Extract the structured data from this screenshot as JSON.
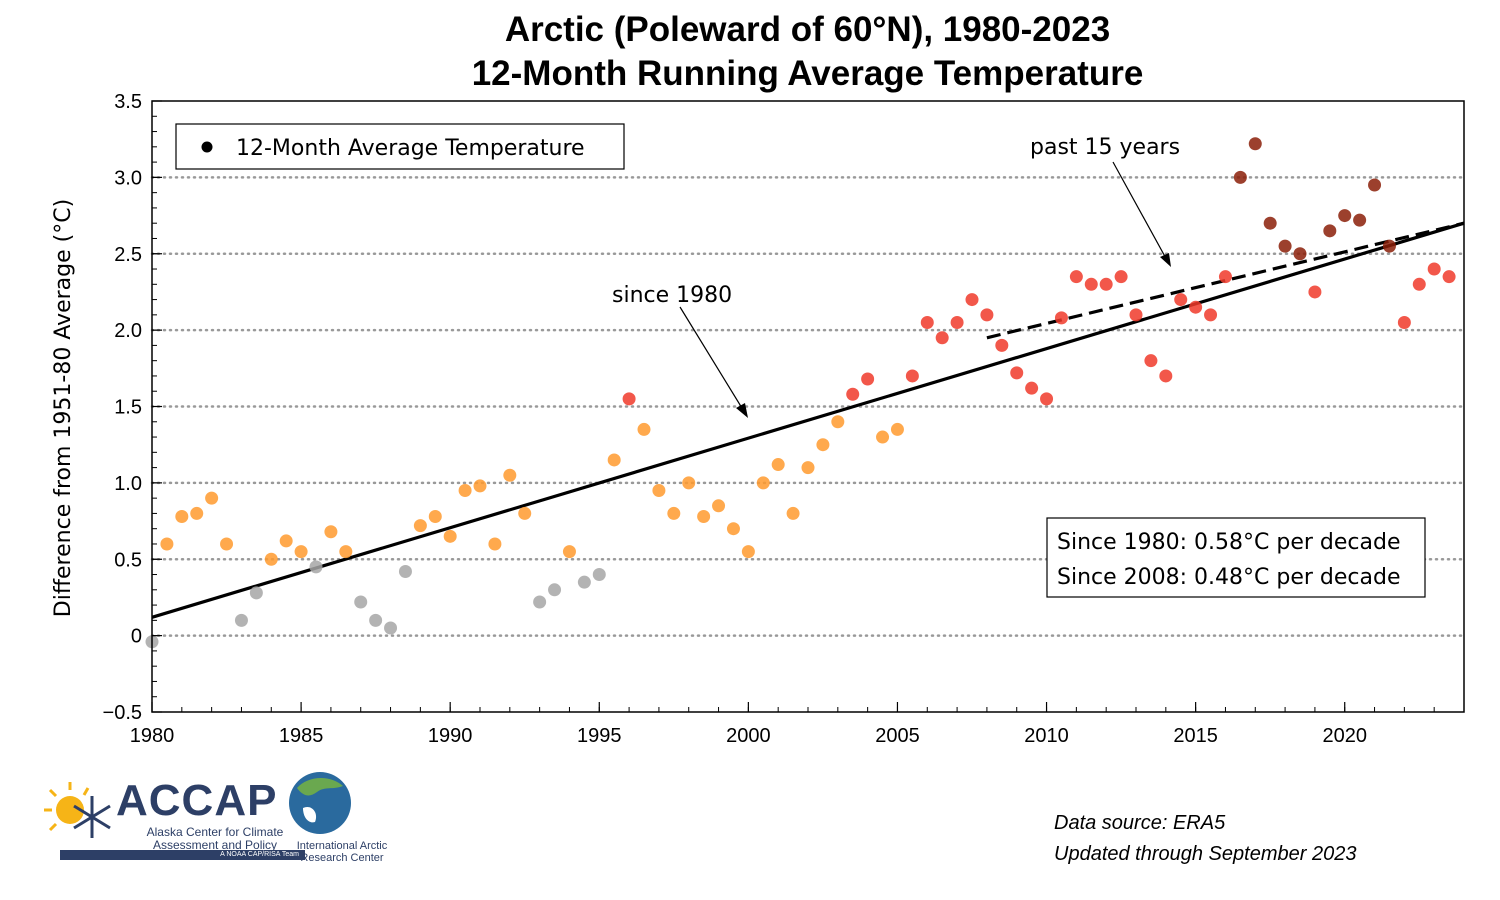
{
  "title_line1": "Arctic (Poleward of 60°N), 1980-2023",
  "title_line2": "12-Month Running Average Temperature",
  "legend": {
    "marker_label": "12-Month Average Temperature"
  },
  "annotations": {
    "since_1980": "since 1980",
    "past_15_years": "past 15 years"
  },
  "trend_box": {
    "line1": "Since 1980: 0.58°C per decade",
    "line2": "Since 2008: 0.48°C per decade"
  },
  "source": {
    "line1": "Data source: ERA5",
    "line2": "Updated through September 2023"
  },
  "logos": {
    "accap_name": "ACCAP",
    "accap_sub": "Alaska Center for Climate Assessment and Policy",
    "accap_tag": "A NOAA CAP/RISA Team",
    "iarc_name": "International Arctic Research Center"
  },
  "colors": {
    "gray": "#a6a6a6",
    "orange": "#ff9a2e",
    "red": "#f03a2a",
    "dark_red": "#8b1f08"
  },
  "chart_data": {
    "type": "scatter",
    "title": "Arctic (Poleward of 60°N), 1980-2023 12-Month Running Average Temperature",
    "xlabel": "",
    "ylabel": "Difference from 1951-80 Average (°C)",
    "xlim": [
      1980,
      2024
    ],
    "ylim": [
      -0.5,
      3.5
    ],
    "x_ticks": [
      1980,
      1985,
      1990,
      1995,
      2000,
      2005,
      2010,
      2015,
      2020
    ],
    "y_ticks": [
      -0.5,
      0,
      0.5,
      1.0,
      1.5,
      2.0,
      2.5,
      3.0,
      3.5
    ],
    "y_tick_labels": [
      "−0.5",
      "0",
      "0.5",
      "1.0",
      "1.5",
      "2.0",
      "2.5",
      "3.0",
      "3.5"
    ],
    "grid": "horizontal dotted",
    "legend_position": "top-left",
    "series": [
      {
        "name": "12-Month Average Temperature",
        "x": [
          1980.0,
          1980.5,
          1981.0,
          1981.5,
          1982.0,
          1982.5,
          1983.0,
          1983.5,
          1984.0,
          1984.5,
          1985.0,
          1985.5,
          1986.0,
          1986.5,
          1987.0,
          1987.5,
          1988.0,
          1988.5,
          1989.0,
          1989.5,
          1990.0,
          1990.5,
          1991.0,
          1991.5,
          1992.0,
          1992.5,
          1993.0,
          1993.5,
          1994.0,
          1994.5,
          1995.0,
          1995.5,
          1996.0,
          1996.5,
          1997.0,
          1997.5,
          1998.0,
          1998.5,
          1999.0,
          1999.5,
          2000.0,
          2000.5,
          2001.0,
          2001.5,
          2002.0,
          2002.5,
          2003.0,
          2003.5,
          2004.0,
          2004.5,
          2005.0,
          2005.5,
          2006.0,
          2006.5,
          2007.0,
          2007.5,
          2008.0,
          2008.5,
          2009.0,
          2009.5,
          2010.0,
          2010.5,
          2011.0,
          2011.5,
          2012.0,
          2012.5,
          2013.0,
          2013.5,
          2014.0,
          2014.5,
          2015.0,
          2015.5,
          2016.0,
          2016.5,
          2017.0,
          2017.5,
          2018.0,
          2018.5,
          2019.0,
          2019.5,
          2020.0,
          2020.5,
          2021.0,
          2021.5,
          2022.0,
          2022.5,
          2023.0,
          2023.5
        ],
        "y": [
          -0.04,
          0.6,
          0.78,
          0.8,
          0.9,
          0.6,
          0.1,
          0.28,
          0.5,
          0.62,
          0.55,
          0.45,
          0.68,
          0.55,
          0.22,
          0.1,
          0.05,
          0.42,
          0.72,
          0.78,
          0.65,
          0.95,
          0.98,
          0.6,
          1.05,
          0.8,
          0.22,
          0.3,
          0.55,
          0.35,
          0.4,
          1.15,
          1.55,
          1.35,
          0.95,
          0.8,
          1.0,
          0.78,
          0.85,
          0.7,
          0.55,
          1.0,
          1.12,
          0.8,
          1.1,
          1.25,
          1.4,
          1.58,
          1.68,
          1.3,
          1.35,
          1.7,
          2.05,
          1.95,
          2.05,
          2.2,
          2.1,
          1.9,
          1.72,
          1.62,
          1.55,
          2.08,
          2.35,
          2.3,
          2.3,
          2.35,
          2.1,
          1.8,
          1.7,
          2.2,
          2.15,
          2.1,
          2.35,
          3.0,
          3.22,
          2.7,
          2.55,
          2.5,
          2.25,
          2.65,
          2.75,
          2.72,
          2.95,
          2.55,
          2.05,
          2.3,
          2.4,
          2.35
        ]
      }
    ],
    "trend_lines": [
      {
        "name": "since 1980",
        "x": [
          1980,
          2024
        ],
        "y": [
          0.12,
          2.7
        ]
      },
      {
        "name": "past 15 years",
        "x": [
          2008,
          2024
        ],
        "y": [
          1.95,
          2.7
        ]
      }
    ]
  }
}
